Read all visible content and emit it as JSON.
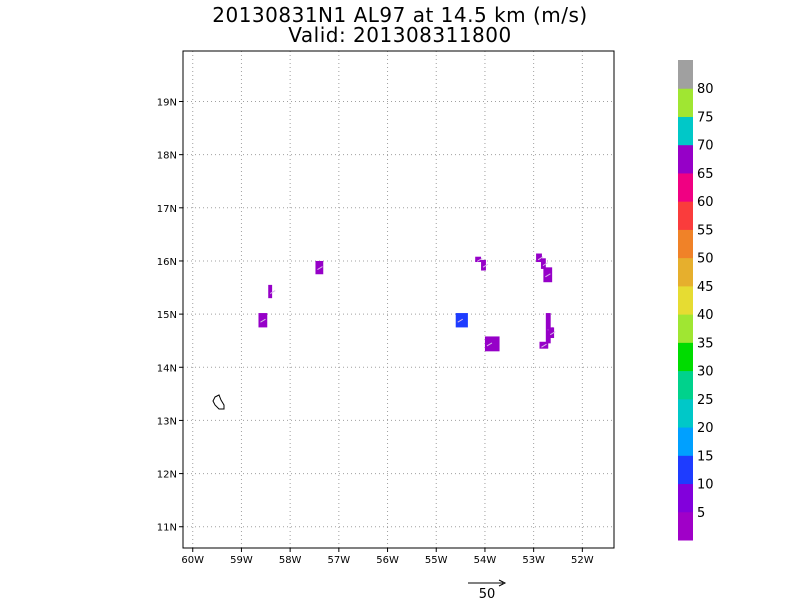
{
  "chart_data": {
    "type": "heatmap",
    "title": "20130831N1 AL97 at 14.5 km (m/s)",
    "subtitle": "Valid: 201308311800",
    "x_ticks": [
      "60W",
      "59W",
      "58W",
      "57W",
      "56W",
      "55W",
      "54W",
      "53W",
      "52W"
    ],
    "y_ticks": [
      "11N",
      "12N",
      "13N",
      "14N",
      "15N",
      "16N",
      "17N",
      "18N",
      "19N"
    ],
    "xlim": [
      -60.2,
      -51.35
    ],
    "ylim": [
      10.6,
      19.95
    ],
    "grid": true,
    "cells": [
      {
        "lon0": -58.65,
        "lon1": -58.47,
        "lat0": 14.75,
        "lat1": 15.02,
        "color": "#9600c8"
      },
      {
        "lon0": -58.45,
        "lon1": -58.37,
        "lat0": 15.3,
        "lat1": 15.55,
        "color": "#9600c8"
      },
      {
        "lon0": -57.48,
        "lon1": -57.32,
        "lat0": 15.75,
        "lat1": 16.0,
        "color": "#9600c8"
      },
      {
        "lon0": -54.6,
        "lon1": -54.35,
        "lat0": 14.75,
        "lat1": 15.02,
        "color": "#1e3cff"
      },
      {
        "lon0": -54.0,
        "lon1": -53.7,
        "lat0": 14.3,
        "lat1": 14.58,
        "color": "#9600c8"
      },
      {
        "lon0": -54.2,
        "lon1": -54.08,
        "lat0": 15.98,
        "lat1": 16.08,
        "color": "#9600c8"
      },
      {
        "lon0": -54.08,
        "lon1": -53.98,
        "lat0": 15.82,
        "lat1": 16.02,
        "color": "#9600c8"
      },
      {
        "lon0": -52.95,
        "lon1": -52.83,
        "lat0": 15.98,
        "lat1": 16.14,
        "color": "#9600c8"
      },
      {
        "lon0": -52.85,
        "lon1": -52.75,
        "lat0": 15.85,
        "lat1": 16.05,
        "color": "#9600c8"
      },
      {
        "lon0": -52.8,
        "lon1": -52.62,
        "lat0": 15.6,
        "lat1": 15.88,
        "color": "#9600c8"
      },
      {
        "lon0": -52.75,
        "lon1": -52.65,
        "lat0": 14.45,
        "lat1": 15.02,
        "color": "#9600c8"
      },
      {
        "lon0": -52.7,
        "lon1": -52.58,
        "lat0": 14.55,
        "lat1": 14.75,
        "color": "#9600c8"
      },
      {
        "lon0": -52.88,
        "lon1": -52.7,
        "lat0": 14.35,
        "lat1": 14.48,
        "color": "#9600c8"
      }
    ],
    "colorbar": {
      "labels": [
        "5",
        "10",
        "15",
        "20",
        "25",
        "30",
        "35",
        "40",
        "45",
        "50",
        "55",
        "60",
        "65",
        "70",
        "75",
        "80"
      ],
      "colors": [
        "#a000c8",
        "#8200dc",
        "#1e3cff",
        "#00a0ff",
        "#00c8c8",
        "#00d28c",
        "#00dc00",
        "#a0e632",
        "#e6dc32",
        "#e6af2d",
        "#f08228",
        "#fa3c3c",
        "#f00082",
        "#9600c8",
        "#00c8c8",
        "#a0e632",
        "#a0a0a0"
      ]
    },
    "vector_reference": {
      "label": "50"
    }
  }
}
